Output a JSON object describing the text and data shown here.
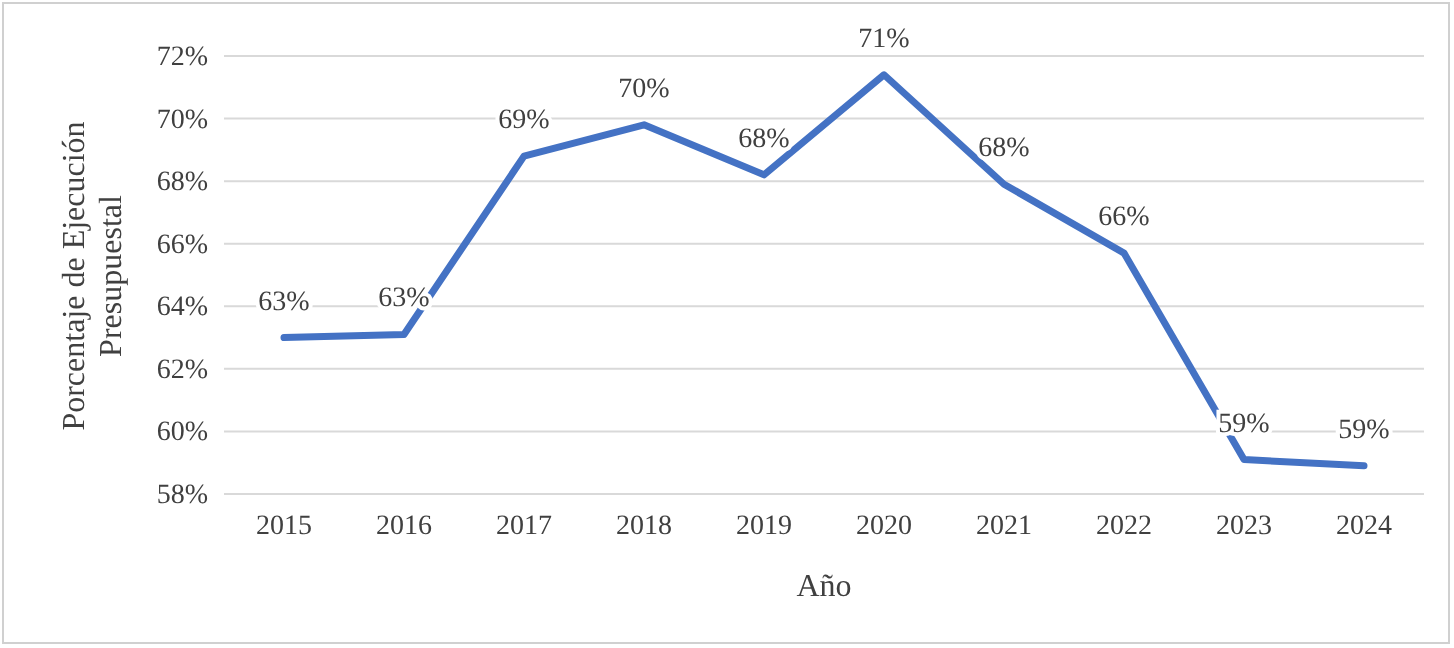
{
  "chart_data": {
    "type": "line",
    "xlabel": "Año",
    "ylabel": "Porcentaje de Ejecución Presupuestal",
    "categories": [
      "2015",
      "2016",
      "2017",
      "2018",
      "2019",
      "2020",
      "2021",
      "2022",
      "2023",
      "2024"
    ],
    "series": [
      {
        "color": "#4472c4",
        "values": [
          63.0,
          63.1,
          68.8,
          69.8,
          68.2,
          71.4,
          67.9,
          65.7,
          59.1,
          58.9
        ],
        "value_labels": [
          "63%",
          "63%",
          "69%",
          "70%",
          "68%",
          "71%",
          "68%",
          "66%",
          "59%",
          "59%"
        ]
      }
    ],
    "ylim": [
      58,
      72
    ],
    "yticks": [
      {
        "value": 58,
        "label": "58%"
      },
      {
        "value": 60,
        "label": "60%"
      },
      {
        "value": 62,
        "label": "62%"
      },
      {
        "value": 64,
        "label": "64%"
      },
      {
        "value": 66,
        "label": "66%"
      },
      {
        "value": 68,
        "label": "68%"
      },
      {
        "value": 70,
        "label": "70%"
      },
      {
        "value": 72,
        "label": "72%"
      }
    ],
    "grid": "y",
    "marker": "none",
    "line_style": "solid"
  }
}
